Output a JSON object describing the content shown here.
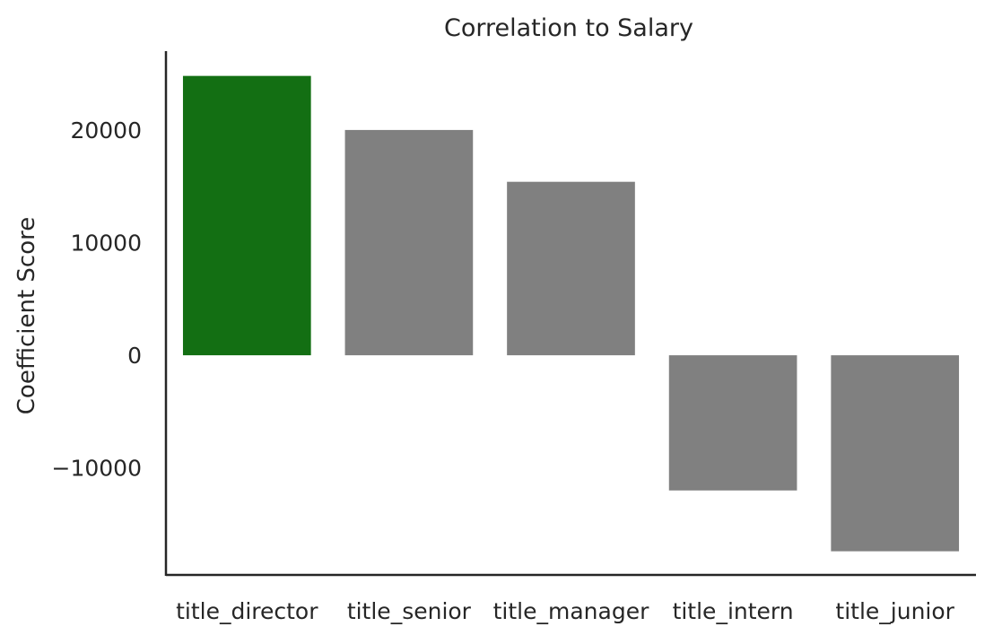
{
  "chart_data": {
    "type": "bar",
    "title": "Correlation to Salary",
    "xlabel": "",
    "ylabel": "Coefficient Score",
    "categories": [
      "title_director",
      "title_senior",
      "title_manager",
      "title_intern",
      "title_junior"
    ],
    "values": [
      24800,
      20000,
      15400,
      -12000,
      -17400
    ],
    "colors": [
      "#136f13",
      "#808080",
      "#808080",
      "#808080",
      "#808080"
    ],
    "yticks": [
      20000,
      10000,
      0,
      -10000
    ],
    "ytick_labels": [
      "20000",
      "10000",
      "0",
      "−10000"
    ],
    "ylim": [
      -19500,
      27000
    ],
    "grid": false,
    "legend": "none"
  }
}
